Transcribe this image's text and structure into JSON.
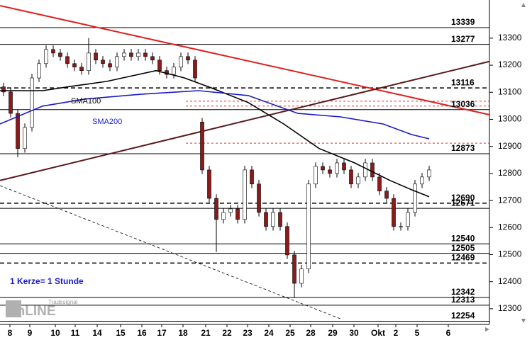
{
  "chart_data": {
    "type": "candlestick",
    "xlim": [
      -0.5,
      68.5
    ],
    "ylim": [
      12250,
      13441
    ],
    "yticks": [
      12300,
      12400,
      12500,
      12600,
      12700,
      12800,
      12900,
      13000,
      13100,
      13200,
      13300
    ],
    "xticks": [
      {
        "value": 0.9,
        "label": "8"
      },
      {
        "value": 3.7,
        "label": "9"
      },
      {
        "value": 7.3,
        "label": "10"
      },
      {
        "value": 10.1,
        "label": "11"
      },
      {
        "value": 13.2,
        "label": "14"
      },
      {
        "value": 16.5,
        "label": "15"
      },
      {
        "value": 19.5,
        "label": "16"
      },
      {
        "value": 22.3,
        "label": "17"
      },
      {
        "value": 25.3,
        "label": "18"
      },
      {
        "value": 28.5,
        "label": "21"
      },
      {
        "value": 31.5,
        "label": "22"
      },
      {
        "value": 34.4,
        "label": "23"
      },
      {
        "value": 37.4,
        "label": "24"
      },
      {
        "value": 40.4,
        "label": "25"
      },
      {
        "value": 43.3,
        "label": "28"
      },
      {
        "value": 46.4,
        "label": "29"
      },
      {
        "value": 49.4,
        "label": "30"
      },
      {
        "value": 52.8,
        "label": "Okt"
      },
      {
        "value": 55.3,
        "label": "2"
      },
      {
        "value": 58.3,
        "label": "5"
      },
      {
        "value": 62.7,
        "label": "6"
      }
    ],
    "open": [
      13120,
      13101,
      13022,
      12892,
      12970,
      13153,
      13206,
      13258,
      13245,
      13232,
      13206,
      13193,
      13180,
      13245,
      13219,
      13206,
      13193,
      13232,
      13245,
      13232,
      13245,
      13232,
      13219,
      13180,
      13166,
      13193,
      13232,
      13219,
      12990,
      12813,
      12708,
      12630,
      12656,
      12669,
      12630,
      12813,
      12761,
      12656,
      12604,
      12656,
      12604,
      12499,
      12394,
      12447,
      12761,
      12826,
      12813,
      12800,
      12839,
      12813,
      12761,
      12787,
      12839,
      12787,
      12735,
      12708,
      12604,
      12604,
      12656,
      12761,
      12787
    ],
    "high": [
      13135,
      13116,
      13037,
      12985,
      13168,
      13221,
      13273,
      13273,
      13260,
      13247,
      13221,
      13208,
      13300,
      13260,
      13234,
      13221,
      13247,
      13260,
      13260,
      13260,
      13260,
      13247,
      13234,
      13195,
      13208,
      13247,
      13247,
      13234,
      13005,
      12828,
      12723,
      12671,
      12684,
      12684,
      12828,
      12828,
      12776,
      12671,
      12671,
      12671,
      12619,
      12514,
      12462,
      12776,
      12841,
      12841,
      12828,
      12854,
      12854,
      12828,
      12802,
      12854,
      12854,
      12802,
      12750,
      12723,
      12619,
      12671,
      12776,
      12802,
      12828
    ],
    "low": [
      13086,
      13007,
      12860,
      12877,
      12955,
      13138,
      13191,
      13230,
      13217,
      13191,
      13178,
      13165,
      13165,
      13204,
      13191,
      13178,
      13178,
      13217,
      13217,
      13217,
      13217,
      13204,
      13165,
      13151,
      13151,
      13178,
      13204,
      13138,
      12798,
      12693,
      12510,
      12615,
      12641,
      12615,
      12615,
      12746,
      12641,
      12589,
      12589,
      12589,
      12484,
      12340,
      12379,
      12432,
      12746,
      12798,
      12785,
      12785,
      12798,
      12746,
      12746,
      12772,
      12772,
      12720,
      12693,
      12589,
      12589,
      12589,
      12641,
      12746,
      12772
    ],
    "close": [
      13101,
      13022,
      12892,
      12970,
      13153,
      13206,
      13258,
      13245,
      13232,
      13206,
      13193,
      13180,
      13245,
      13219,
      13206,
      13193,
      13232,
      13245,
      13232,
      13245,
      13232,
      13219,
      13180,
      13166,
      13193,
      13232,
      13219,
      13153,
      12813,
      12708,
      12630,
      12656,
      12669,
      12630,
      12813,
      12761,
      12656,
      12604,
      12656,
      12604,
      12499,
      12394,
      12447,
      12761,
      12826,
      12813,
      12800,
      12839,
      12813,
      12761,
      12787,
      12839,
      12787,
      12735,
      12708,
      12604,
      12604,
      12656,
      12761,
      12787,
      12813
    ],
    "up_color": "#ffffff",
    "down_color": "#8b1a1a",
    "indicators": [
      {
        "name": "SMA100",
        "color": "#000000",
        "x": [
          -0.5,
          5.5,
          9.5,
          14.5,
          21.5,
          25.5,
          29.5,
          34.5,
          39.5,
          44.5,
          49.5,
          54.5,
          57.5,
          60
        ],
        "values": [
          13106,
          13106,
          13122,
          13140,
          13180,
          13153,
          13114,
          13062,
          12983,
          12892,
          12839,
          12774,
          12740,
          12714
        ]
      },
      {
        "name": "SMA200",
        "color": "#1a1acc",
        "x": [
          -0.5,
          5.5,
          11.5,
          19.5,
          27.5,
          34.5,
          41.5,
          47.5,
          53.5,
          57.5,
          60
        ],
        "values": [
          12983,
          13049,
          13075,
          13093,
          13106,
          13088,
          13022,
          13009,
          12983,
          12944,
          12928
        ]
      }
    ],
    "trendlines": [
      {
        "color": "#e02020",
        "x": [
          -0.5,
          68.5
        ],
        "values": [
          13420,
          13017
        ],
        "dashed": false
      },
      {
        "color": "#5a1a1a",
        "x": [
          -0.5,
          68.5
        ],
        "values": [
          12774,
          13214
        ],
        "dashed": false
      },
      {
        "color": "#000000",
        "x": [
          -0.5,
          47.5
        ],
        "values": [
          12755,
          12263
        ],
        "dashed": true
      }
    ],
    "levels": [
      {
        "value": 13339,
        "dashed": false
      },
      {
        "value": 13277,
        "dashed": false
      },
      {
        "value": 13116,
        "dashed": true
      },
      {
        "value": 13036,
        "dashed": false
      },
      {
        "value": 12873,
        "dashed": false
      },
      {
        "value": 12690,
        "dashed": true
      },
      {
        "value": 12671,
        "dashed": false
      },
      {
        "value": 12540,
        "dashed": false
      },
      {
        "value": 12505,
        "dashed": false
      },
      {
        "value": 12469,
        "dashed": true
      },
      {
        "value": 12342,
        "dashed": false
      },
      {
        "value": 12313,
        "dashed": false
      },
      {
        "value": 12254,
        "dashed": false
      }
    ],
    "red_levels": [
      13067,
      13049,
      12912
    ],
    "annotation": "1 Kerze= 1 Stunde",
    "logo": [
      "Tradesignal",
      "onLINE"
    ]
  }
}
